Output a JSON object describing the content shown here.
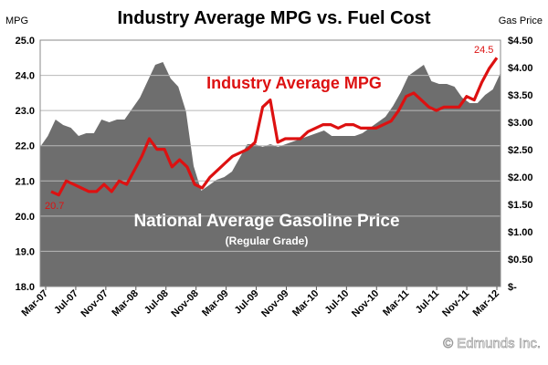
{
  "chart_data": {
    "type": "area+line",
    "title": "Industry Average MPG vs. Fuel Cost",
    "left_axis_title": "MPG",
    "right_axis_title": "Gas Price",
    "left_ylim": [
      18.0,
      25.0
    ],
    "right_ylim": [
      0,
      4.5
    ],
    "left_ticks": [
      "18.0",
      "19.0",
      "20.0",
      "21.0",
      "22.0",
      "23.0",
      "24.0",
      "25.0"
    ],
    "right_ticks": [
      "$-",
      "$0.50",
      "$1.00",
      "$1.50",
      "$2.00",
      "$2.50",
      "$3.00",
      "$3.50",
      "$4.00",
      "$4.50"
    ],
    "x_ticks": [
      "Mar-07",
      "Jul-07",
      "Nov-07",
      "Mar-08",
      "Jul-08",
      "Nov-08",
      "Mar-09",
      "Jul-09",
      "Nov-09",
      "Mar-10",
      "Jul-10",
      "Nov-10",
      "Mar-11",
      "Jul-11",
      "Nov-11",
      "Mar-12"
    ],
    "grid": true,
    "series": [
      {
        "name": "National Average Gasoline Price",
        "subtitle": "(Regular Grade)",
        "axis": "right",
        "kind": "area",
        "color": "#6e6e6e",
        "values": [
          2.55,
          2.75,
          3.05,
          2.95,
          2.9,
          2.75,
          2.8,
          2.8,
          3.05,
          3.0,
          3.05,
          3.05,
          3.25,
          3.45,
          3.75,
          4.05,
          4.1,
          3.8,
          3.65,
          3.2,
          2.2,
          1.75,
          1.85,
          1.95,
          2.0,
          2.1,
          2.35,
          2.6,
          2.6,
          2.55,
          2.6,
          2.55,
          2.6,
          2.65,
          2.7,
          2.75,
          2.8,
          2.85,
          2.75,
          2.75,
          2.75,
          2.75,
          2.8,
          2.9,
          3.0,
          3.1,
          3.3,
          3.55,
          3.85,
          3.95,
          4.05,
          3.75,
          3.7,
          3.7,
          3.65,
          3.45,
          3.35,
          3.35,
          3.5,
          3.6,
          3.9
        ]
      },
      {
        "name": "Industry Average MPG",
        "axis": "left",
        "kind": "line",
        "color": "#dd1111",
        "values": [
          20.7,
          20.6,
          21.0,
          20.9,
          20.8,
          20.7,
          20.7,
          20.9,
          20.7,
          21.0,
          20.9,
          21.3,
          21.7,
          22.2,
          21.9,
          21.9,
          21.4,
          21.6,
          21.4,
          20.9,
          20.8,
          21.1,
          21.3,
          21.5,
          21.7,
          21.8,
          21.9,
          22.1,
          23.1,
          23.3,
          22.1,
          22.2,
          22.2,
          22.2,
          22.4,
          22.5,
          22.6,
          22.6,
          22.5,
          22.6,
          22.6,
          22.5,
          22.5,
          22.5,
          22.6,
          22.7,
          23.0,
          23.4,
          23.5,
          23.3,
          23.1,
          23.0,
          23.1,
          23.1,
          23.1,
          23.4,
          23.3,
          23.8,
          24.2,
          24.5
        ],
        "start_label": "20.7",
        "end_label": "24.5"
      }
    ]
  },
  "watermark": "© Edmunds Inc."
}
